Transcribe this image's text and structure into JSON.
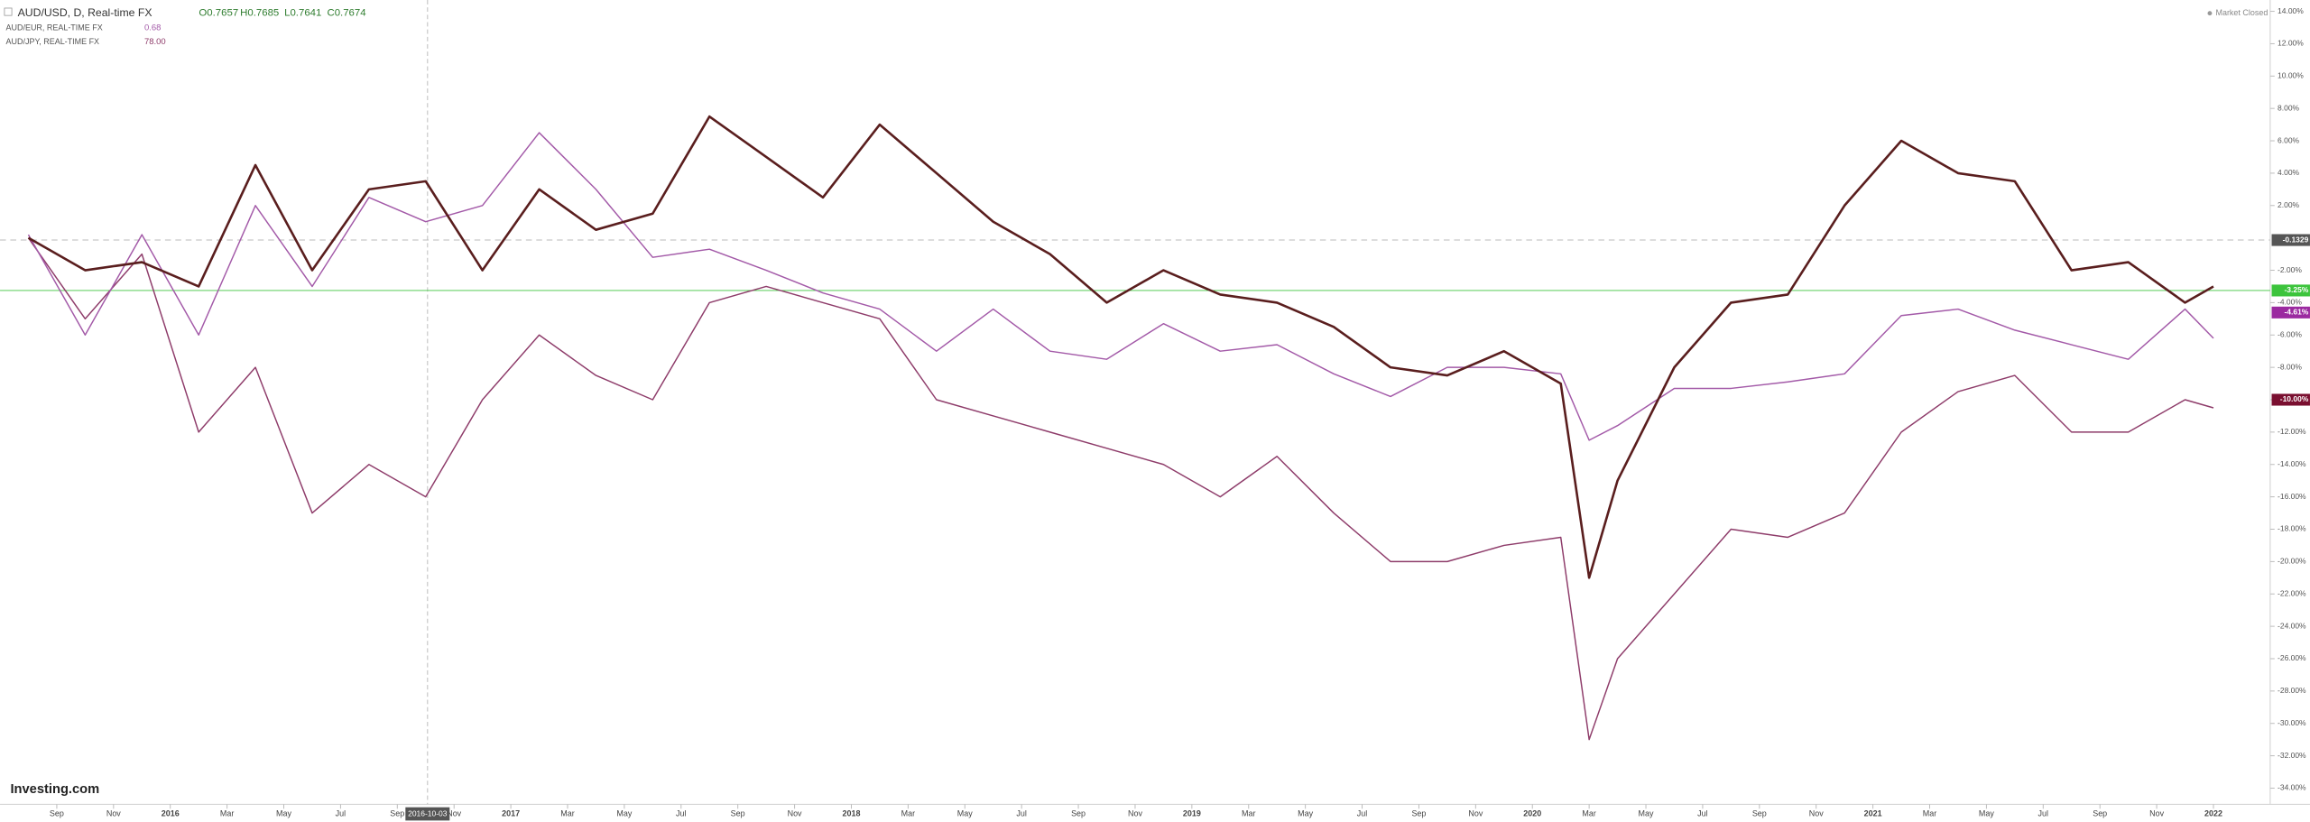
{
  "chart_data": {
    "type": "line",
    "quote": [
      "O0.7657",
      "H0.7685",
      "L0.7641",
      "C0.7674"
    ],
    "status": "Market Closed",
    "brand": "Investing.com",
    "cursor_date": "2016-10-03",
    "x": [
      "2015-08",
      "2015-10",
      "2015-12",
      "2016-02",
      "2016-04",
      "2016-06",
      "2016-08",
      "2016-10",
      "2016-12",
      "2017-02",
      "2017-04",
      "2017-06",
      "2017-08",
      "2017-10",
      "2017-12",
      "2018-02",
      "2018-04",
      "2018-06",
      "2018-08",
      "2018-10",
      "2018-12",
      "2019-02",
      "2019-04",
      "2019-06",
      "2019-08",
      "2019-10",
      "2019-12",
      "2020-02",
      "2020-03",
      "2020-04",
      "2020-06",
      "2020-08",
      "2020-10",
      "2020-12",
      "2021-02",
      "2021-04",
      "2021-06",
      "2021-08",
      "2021-10",
      "2021-12",
      "2022-01"
    ],
    "series": [
      {
        "name": "AUD/USD, D, Real-time FX",
        "color": "#5a1e1e",
        "values": [
          0,
          -2,
          -1.5,
          -3,
          4.5,
          -2,
          3,
          3.5,
          -2,
          3,
          0.5,
          1.5,
          7.5,
          5,
          2.5,
          7,
          4,
          1,
          -1,
          -4,
          -2,
          -3.5,
          -4,
          -5.5,
          -8,
          -8.5,
          -7,
          -9,
          -21,
          -15,
          -8,
          -4,
          -3.5,
          2,
          6,
          4,
          3.5,
          -2,
          -1.5,
          -4,
          -3
        ]
      },
      {
        "name": "AUD/EUR, REAL-TIME FX",
        "last": "0.68",
        "color": "#a35aa8",
        "values": [
          0.2,
          -6,
          0.2,
          -6,
          2,
          -3,
          2.5,
          1,
          2,
          6.5,
          3,
          -1.2,
          -0.7,
          -2,
          -3.4,
          -4.4,
          -7,
          -4.4,
          -7,
          -7.5,
          -5.3,
          -7,
          -6.6,
          -8.4,
          -9.8,
          -8,
          -8,
          -8.4,
          -12.5,
          -11.6,
          -9.3,
          -9.3,
          -8.9,
          -8.4,
          -4.8,
          -4.4,
          -5.7,
          -6.6,
          -7.5,
          -4.4,
          -6.2
        ]
      },
      {
        "name": "AUD/JPY, REAL-TIME FX",
        "last": "78.00",
        "color": "#8e3c6a",
        "values": [
          0,
          -5,
          -1,
          -12,
          -8,
          -17,
          -14,
          -16,
          -10,
          -6,
          -8.5,
          -10,
          -4,
          -3,
          -4,
          -5,
          -10,
          -11,
          -12,
          -13,
          -14,
          -16,
          -13.5,
          -17,
          -20,
          -20,
          -19,
          -18.5,
          -31,
          -26,
          -22,
          -18,
          -18.5,
          -17,
          -12,
          -9.5,
          -8.5,
          -12,
          -12,
          -10,
          -10.5
        ]
      }
    ],
    "price_lines": [
      {
        "value": -0.1329,
        "label": "-0.1329",
        "color": "#555555",
        "dashed": true
      },
      {
        "value": -3.25,
        "label": "-3.25%",
        "color": "#3cc43c",
        "dashed": false
      },
      {
        "value": -4.61,
        "label": "-4.61%",
        "color": "#9b2aa0",
        "dashed": false
      },
      {
        "value": -10,
        "label": "-10.00%",
        "color": "#7a0f30",
        "dashed": false
      }
    ],
    "xlim": [
      "2015-07",
      "2022-03"
    ],
    "xticks": [
      {
        "value": "2015-09",
        "label": "Sep"
      },
      {
        "value": "2015-11",
        "label": "Nov"
      },
      {
        "value": "2016-01",
        "label": "2016"
      },
      {
        "value": "2016-03",
        "label": "Mar"
      },
      {
        "value": "2016-05",
        "label": "May"
      },
      {
        "value": "2016-07",
        "label": "Jul"
      },
      {
        "value": "2016-09",
        "label": "Sep"
      },
      {
        "value": "2016-11",
        "label": "Nov"
      },
      {
        "value": "2017-01",
        "label": "2017"
      },
      {
        "value": "2017-03",
        "label": "Mar"
      },
      {
        "value": "2017-05",
        "label": "May"
      },
      {
        "value": "2017-07",
        "label": "Jul"
      },
      {
        "value": "2017-09",
        "label": "Sep"
      },
      {
        "value": "2017-11",
        "label": "Nov"
      },
      {
        "value": "2018-01",
        "label": "2018"
      },
      {
        "value": "2018-03",
        "label": "Mar"
      },
      {
        "value": "2018-05",
        "label": "May"
      },
      {
        "value": "2018-07",
        "label": "Jul"
      },
      {
        "value": "2018-09",
        "label": "Sep"
      },
      {
        "value": "2018-11",
        "label": "Nov"
      },
      {
        "value": "2019-01",
        "label": "2019"
      },
      {
        "value": "2019-03",
        "label": "Mar"
      },
      {
        "value": "2019-05",
        "label": "May"
      },
      {
        "value": "2019-07",
        "label": "Jul"
      },
      {
        "value": "2019-09",
        "label": "Sep"
      },
      {
        "value": "2019-11",
        "label": "Nov"
      },
      {
        "value": "2020-01",
        "label": "2020"
      },
      {
        "value": "2020-03",
        "label": "Mar"
      },
      {
        "value": "2020-05",
        "label": "May"
      },
      {
        "value": "2020-07",
        "label": "Jul"
      },
      {
        "value": "2020-09",
        "label": "Sep"
      },
      {
        "value": "2020-11",
        "label": "Nov"
      },
      {
        "value": "2021-01",
        "label": "2021"
      },
      {
        "value": "2021-03",
        "label": "Mar"
      },
      {
        "value": "2021-05",
        "label": "May"
      },
      {
        "value": "2021-07",
        "label": "Jul"
      },
      {
        "value": "2021-09",
        "label": "Sep"
      },
      {
        "value": "2021-11",
        "label": "Nov"
      },
      {
        "value": "2022-01",
        "label": "2022"
      }
    ],
    "ylim": [
      -35,
      14.7
    ],
    "yticks": [
      {
        "value": 14,
        "label": "14.00%"
      },
      {
        "value": 12,
        "label": "12.00%"
      },
      {
        "value": 10,
        "label": "10.00%"
      },
      {
        "value": 8,
        "label": "8.00%"
      },
      {
        "value": 6,
        "label": "6.00%"
      },
      {
        "value": 4,
        "label": "4.00%"
      },
      {
        "value": 2,
        "label": "2.00%"
      },
      {
        "value": -2,
        "label": "-2.00%"
      },
      {
        "value": -4,
        "label": "-4.00%"
      },
      {
        "value": -6,
        "label": "-6.00%"
      },
      {
        "value": -8,
        "label": "-8.00%"
      },
      {
        "value": -10,
        "label": "-10.00%"
      },
      {
        "value": -12,
        "label": "-12.00%"
      },
      {
        "value": -14,
        "label": "-14.00%"
      },
      {
        "value": -16,
        "label": "-16.00%"
      },
      {
        "value": -18,
        "label": "-18.00%"
      },
      {
        "value": -20,
        "label": "-20.00%"
      },
      {
        "value": -22,
        "label": "-22.00%"
      },
      {
        "value": -24,
        "label": "-24.00%"
      },
      {
        "value": -26,
        "label": "-26.00%"
      },
      {
        "value": -28,
        "label": "-28.00%"
      },
      {
        "value": -30,
        "label": "-30.00%"
      },
      {
        "value": -32,
        "label": "-32.00%"
      },
      {
        "value": -34,
        "label": "-34.00%"
      }
    ],
    "grid": false
  }
}
